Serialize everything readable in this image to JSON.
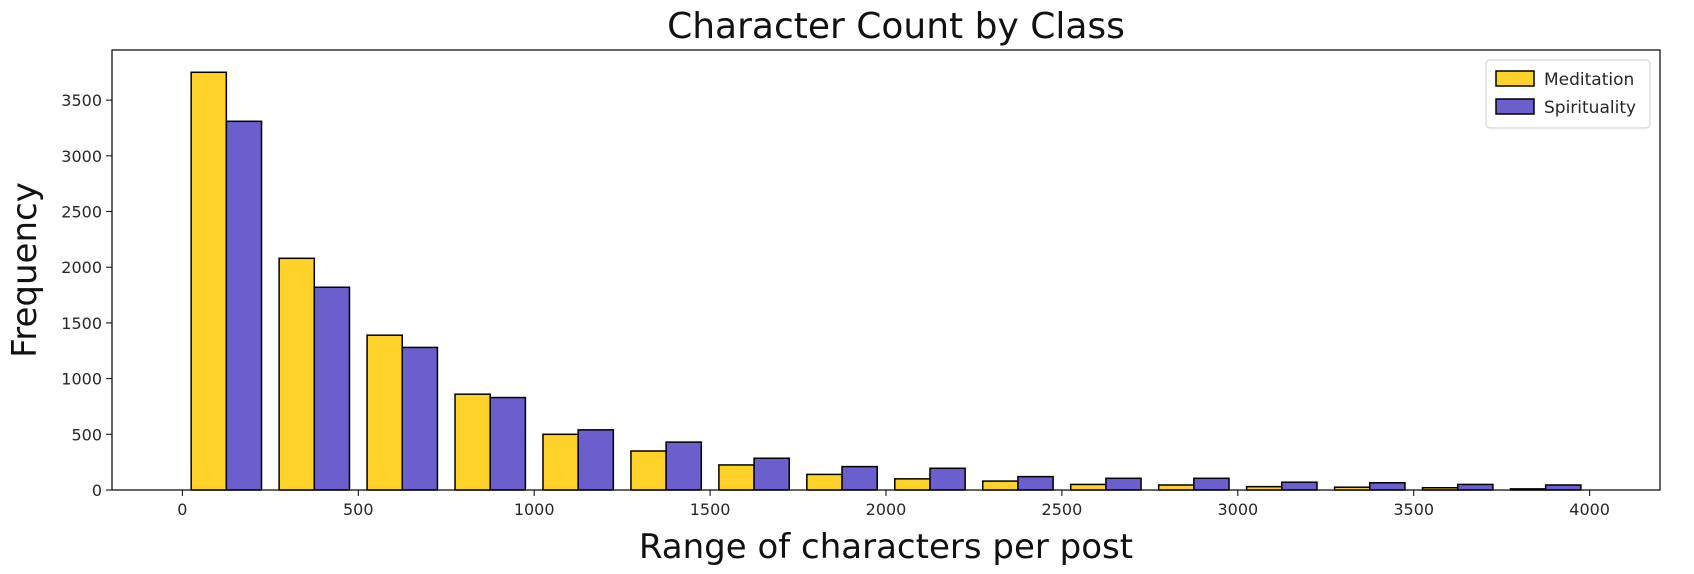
{
  "chart_data": {
    "type": "bar",
    "title": "Character Count by Class",
    "xlabel": "Range of characters per post",
    "ylabel": "Frequency",
    "xlim": [
      -200,
      4200
    ],
    "ylim": [
      0,
      3950
    ],
    "xticks": [
      0,
      500,
      1000,
      1500,
      2000,
      2500,
      3000,
      3500,
      4000
    ],
    "yticks": [
      0,
      500,
      1000,
      1500,
      2000,
      2500,
      3000,
      3500
    ],
    "bins": [
      [
        25,
        225
      ],
      [
        275,
        475
      ],
      [
        525,
        725
      ],
      [
        775,
        975
      ],
      [
        1025,
        1225
      ],
      [
        1275,
        1475
      ],
      [
        1525,
        1725
      ],
      [
        1775,
        1975
      ],
      [
        2025,
        2225
      ],
      [
        2275,
        2475
      ],
      [
        2525,
        2725
      ],
      [
        2775,
        2975
      ],
      [
        3025,
        3225
      ],
      [
        3275,
        3475
      ],
      [
        3525,
        3725
      ],
      [
        3775,
        3975
      ]
    ],
    "series": [
      {
        "name": "Meditation",
        "color": "#ffd22b",
        "values": [
          3750,
          2080,
          1390,
          860,
          500,
          350,
          225,
          140,
          100,
          80,
          50,
          45,
          30,
          25,
          20,
          10
        ]
      },
      {
        "name": "Spirituality",
        "color": "#6a5fcd",
        "values": [
          3310,
          1820,
          1280,
          830,
          540,
          430,
          285,
          210,
          195,
          120,
          105,
          105,
          70,
          65,
          50,
          45
        ]
      }
    ],
    "legend": "top-right",
    "grid": false
  }
}
